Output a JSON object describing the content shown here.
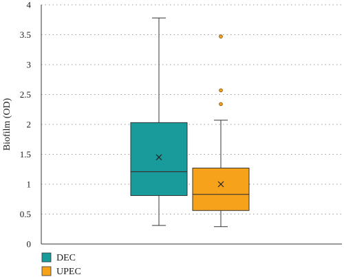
{
  "chart_data": {
    "type": "boxplot",
    "ylabel": "Biofilm (OD)",
    "xlabel": "",
    "ylim": [
      0,
      4
    ],
    "yticks": [
      0,
      0.5,
      1,
      1.5,
      2,
      2.5,
      3,
      3.5,
      4
    ],
    "ytick_labels": [
      "0",
      "0.5",
      "1",
      "1.5",
      "2",
      "2.5",
      "3",
      "3.5",
      "4"
    ],
    "grid": "horizontal dotted",
    "legend_position": "bottom-left",
    "series": [
      {
        "name": "DEC",
        "color": "#1a9b9b",
        "whisker_low": 0.31,
        "q1": 0.81,
        "median": 1.21,
        "q3": 2.03,
        "whisker_high": 3.78,
        "mean": 1.45,
        "outliers": []
      },
      {
        "name": "UPEC",
        "color": "#f7a21b",
        "whisker_low": 0.29,
        "q1": 0.56,
        "median": 0.83,
        "q3": 1.27,
        "whisker_high": 2.07,
        "mean": 1.0,
        "outliers": [
          2.34,
          2.57,
          3.47
        ]
      }
    ]
  }
}
